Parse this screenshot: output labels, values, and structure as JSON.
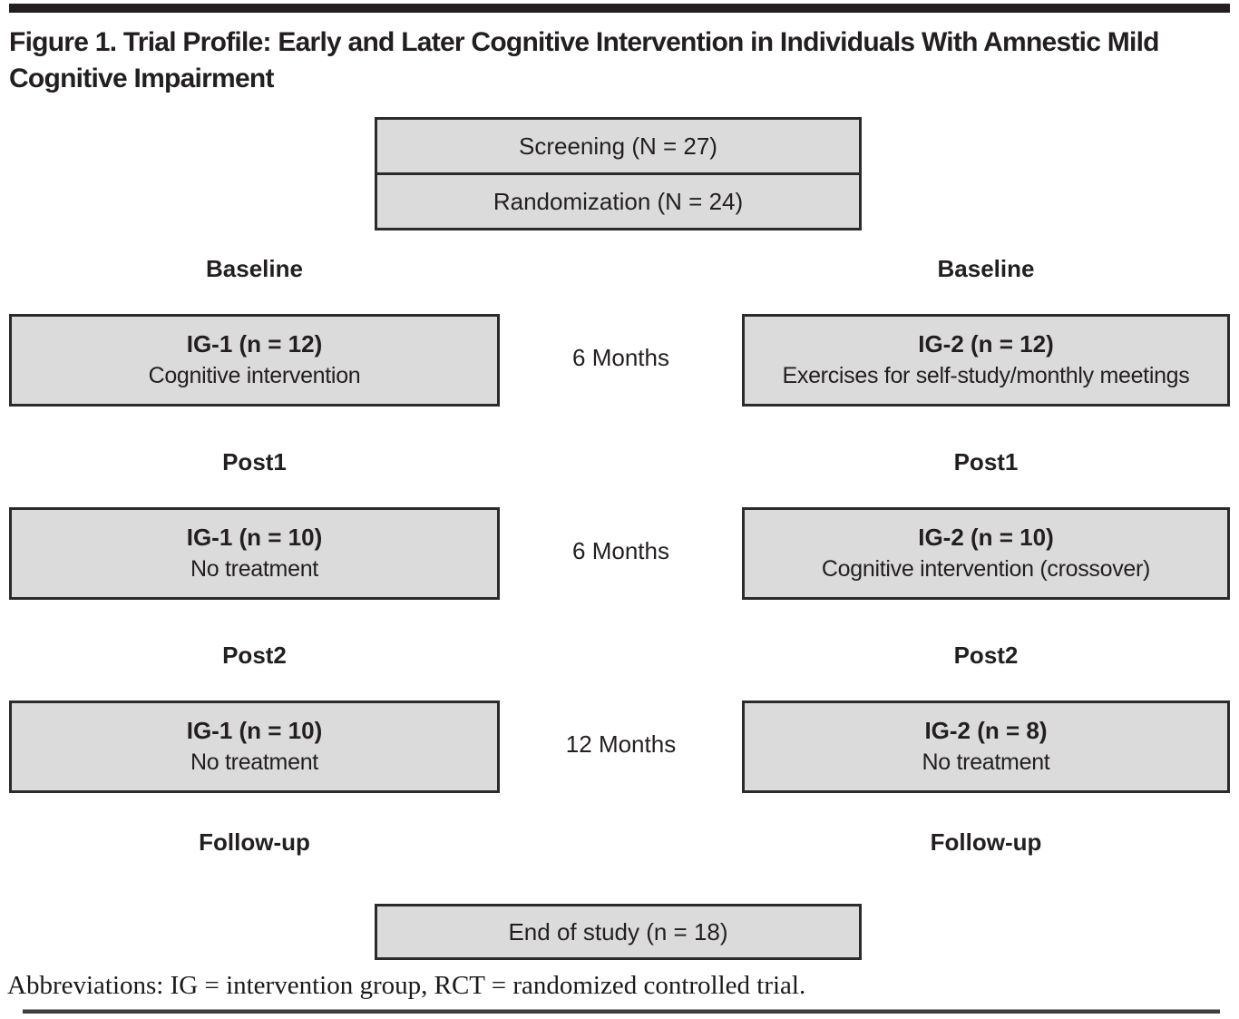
{
  "figure": {
    "title": "Figure 1. Trial Profile: Early and Later Cognitive Intervention in Individuals With Amnestic Mild Cognitive Impairment",
    "footnote": "Abbreviations: IG = intervention group, RCT = randomized controlled trial."
  },
  "colors": {
    "box_fill": "#dbdbdb",
    "box_border": "#2b2b2b",
    "text": "#231f20",
    "top_bar": "#231f20",
    "bottom_rule": "#3f3f3f"
  },
  "top_boxes": {
    "screening": "Screening (N = 27)",
    "randomization": "Randomization (N = 24)"
  },
  "stages": [
    "Baseline",
    "Post1",
    "Post2",
    "Follow-up"
  ],
  "rows": [
    {
      "left_line1": "IG-1 (n = 12)",
      "left_line2": "Cognitive intervention",
      "duration": "6 Months",
      "right_line1": "IG-2 (n = 12)",
      "right_line2": "Exercises for self-study/monthly meetings"
    },
    {
      "left_line1": "IG-1 (n = 10)",
      "left_line2": "No treatment",
      "duration": "6 Months",
      "right_line1": "IG-2 (n = 10)",
      "right_line2": "Cognitive intervention (crossover)"
    },
    {
      "left_line1": "IG-1 (n = 10)",
      "left_line2": "No treatment",
      "duration": "12 Months",
      "right_line1": "IG-2 (n = 8)",
      "right_line2": "No treatment"
    }
  ],
  "end_box": {
    "label": "End of study (n = 18)"
  }
}
